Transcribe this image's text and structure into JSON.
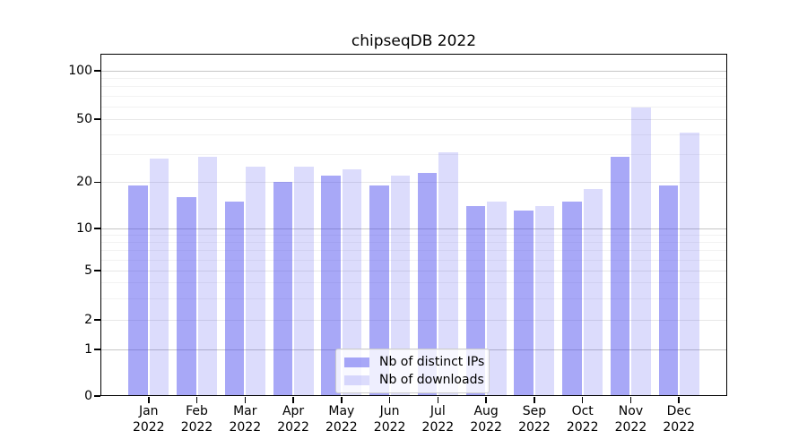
{
  "title": "chipseqDB 2022",
  "legend": {
    "position": "lower center",
    "items": [
      {
        "label": "Nb of distinct IPs"
      },
      {
        "label": "Nb of downloads"
      }
    ]
  },
  "chart_data": {
    "type": "bar",
    "title": "chipseqDB 2022",
    "categories": [
      "Jan 2022",
      "Feb 2022",
      "Mar 2022",
      "Apr 2022",
      "May 2022",
      "Jun 2022",
      "Jul 2022",
      "Aug 2022",
      "Sep 2022",
      "Oct 2022",
      "Nov 2022",
      "Dec 2022"
    ],
    "x_tick_month": [
      "Jan",
      "Feb",
      "Mar",
      "Apr",
      "May",
      "Jun",
      "Jul",
      "Aug",
      "Sep",
      "Oct",
      "Nov",
      "Dec"
    ],
    "x_tick_year": "2022",
    "series": [
      {
        "name": "Nb of distinct IPs",
        "color": "rgba(70,70,237,0.47)",
        "values": [
          19,
          16,
          15,
          20,
          22,
          19,
          23,
          14,
          13,
          15,
          29,
          19
        ]
      },
      {
        "name": "Nb of downloads",
        "color": "rgba(70,70,237,0.19)",
        "values": [
          28,
          29,
          25,
          25,
          24,
          22,
          31,
          15,
          14,
          18,
          59,
          41
        ]
      }
    ],
    "yscale": "symlog (log above 1, linear 0-1)",
    "ylim": [
      0,
      130
    ],
    "y_tick_labels": [
      "100",
      "50",
      "20",
      "10",
      "5",
      "2",
      "1",
      "0"
    ],
    "y_tick_values": [
      100,
      50,
      20,
      10,
      5,
      2,
      1,
      0
    ],
    "y_minor_gridlines": [
      3,
      4,
      6,
      7,
      8,
      9,
      30,
      40,
      60,
      70,
      80,
      90
    ],
    "grid": "horizontal major + minor",
    "xlabel": "",
    "ylabel": ""
  },
  "colors": {
    "bar_base": "#4646ed",
    "grid_decade": "#c6c6c6",
    "grid_labeled": "#e7e7e7",
    "grid_minor": "#f2f2f2",
    "axis": "#000000",
    "background": "#ffffff"
  }
}
